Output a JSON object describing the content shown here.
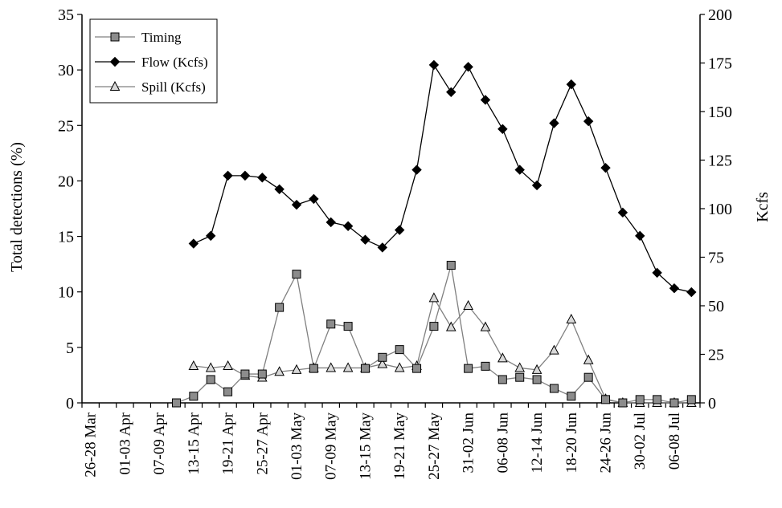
{
  "chart_data": {
    "type": "line",
    "categories": [
      "26-28 Mar",
      "",
      "01-03 Apr",
      "",
      "07-09 Apr",
      "",
      "13-15 Apr",
      "",
      "19-21 Apr",
      "",
      "25-27 Apr",
      "",
      "01-03 May",
      "",
      "07-09 May",
      "",
      "13-15 May",
      "",
      "19-21 May",
      "",
      "25-27 May",
      "",
      "31-02 Jun",
      "",
      "06-08 Jun",
      "",
      "12-14 Jun",
      "",
      "18-20 Jun",
      "",
      "24-26 Jun",
      "",
      "30-02 Jul",
      "",
      "06-08 Jul",
      ""
    ],
    "xlabel": "",
    "ylabel": "Total detections (%)",
    "y2label": "Kcfs",
    "ylim": [
      0,
      35
    ],
    "y2lim": [
      0,
      200
    ],
    "yticks": [
      "0",
      "5",
      "10",
      "15",
      "20",
      "25",
      "30",
      "35"
    ],
    "y2ticks": [
      "0",
      "25",
      "50",
      "75",
      "100",
      "125",
      "150",
      "175",
      "200"
    ],
    "grid": false,
    "legend_position": "top-left",
    "series": [
      {
        "name": "Timing",
        "axis": "left",
        "marker": "square",
        "color": "#808080",
        "values": [
          null,
          null,
          null,
          null,
          null,
          0.0,
          0.6,
          2.1,
          1.0,
          2.6,
          2.6,
          8.6,
          11.6,
          3.1,
          7.1,
          6.9,
          3.1,
          4.1,
          4.8,
          3.1,
          6.9,
          12.4,
          3.1,
          3.3,
          2.1,
          2.3,
          2.1,
          1.3,
          0.6,
          2.3,
          0.3,
          0.0,
          0.3,
          0.3,
          0.0,
          0.3
        ]
      },
      {
        "name": "Flow (Kcfs)",
        "axis": "right",
        "marker": "diamond",
        "color": "#000000",
        "values": [
          null,
          null,
          null,
          null,
          null,
          null,
          82,
          86,
          117,
          117,
          116,
          110,
          102,
          105,
          93,
          91,
          84,
          80,
          89,
          120,
          174,
          160,
          173,
          156,
          141,
          120,
          112,
          144,
          164,
          145,
          121,
          98,
          86,
          67,
          59,
          57
        ]
      },
      {
        "name": "Spill (Kcfs)",
        "axis": "right",
        "marker": "triangle",
        "color": "#808080",
        "values": [
          null,
          null,
          null,
          null,
          null,
          null,
          19,
          18,
          19,
          14,
          13,
          16,
          17,
          18,
          18,
          18,
          18,
          20,
          18,
          19,
          54,
          39,
          50,
          39,
          23,
          18,
          17,
          27,
          43,
          22,
          2,
          0,
          0,
          0,
          0,
          0
        ]
      }
    ]
  }
}
